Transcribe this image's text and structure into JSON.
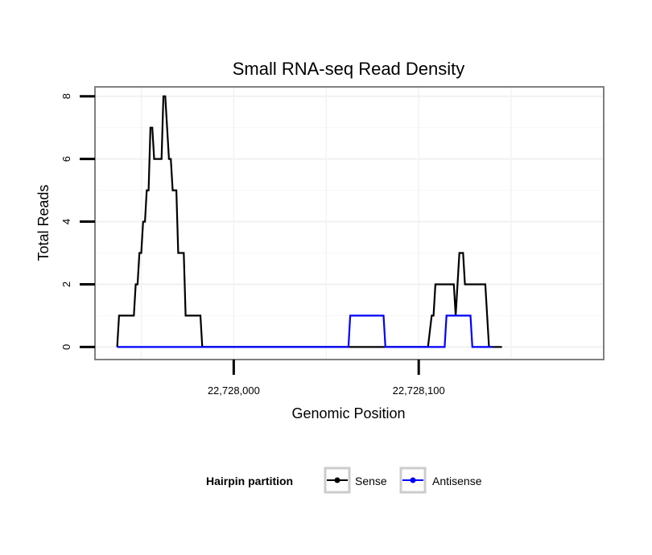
{
  "chart_data": {
    "type": "line",
    "title": "Small RNA-seq Read Density",
    "xlabel": "Genomic Position",
    "ylabel": "Total Reads",
    "xlim": [
      22727925,
      22728200
    ],
    "ylim": [
      -0.4,
      8.3
    ],
    "xticks": [
      22728000,
      22728100
    ],
    "xtick_labels": [
      "22,728,000",
      "22,728,100"
    ],
    "yticks": [
      0,
      2,
      4,
      6,
      8
    ],
    "ytick_labels": [
      "0",
      "2",
      "4",
      "6",
      "8"
    ],
    "grid": true,
    "legend": {
      "title": "Hairpin partition",
      "position": "bottom"
    },
    "series": [
      {
        "name": "Sense",
        "color": "#000000",
        "x": [
          22727937,
          22727938,
          22727946,
          22727947,
          22727948,
          22727949,
          22727950,
          22727951,
          22727952,
          22727953,
          22727954,
          22727955,
          22727956,
          22727957,
          22727958,
          22727959,
          22727960,
          22727961,
          22727962,
          22727963,
          22727964,
          22727965,
          22727966,
          22727967,
          22727968,
          22727969,
          22727970,
          22727971,
          22727972,
          22727973,
          22727974,
          22727975,
          22727976,
          22727982,
          22727983,
          22727988,
          22727989,
          22728104,
          22728105,
          22728107,
          22728108,
          22728109,
          22728110,
          22728113,
          22728116,
          22728119,
          22728120,
          22728121,
          22728122,
          22728123,
          22728124,
          22728125,
          22728126,
          22728127,
          22728130,
          22728133,
          22728136,
          22728137,
          22728138,
          22728139,
          22728140,
          22728145
        ],
        "y": [
          0,
          1,
          1,
          2,
          2,
          3,
          3,
          4,
          4,
          5,
          5,
          7,
          7,
          6,
          6,
          6,
          6,
          6,
          8,
          8,
          7,
          6,
          6,
          5,
          5,
          5,
          3,
          3,
          3,
          3,
          1,
          1,
          1,
          1,
          0,
          0,
          0,
          0,
          0,
          1,
          1,
          2,
          2,
          2,
          2,
          2,
          1,
          2,
          3,
          3,
          3,
          2,
          2,
          2,
          2,
          2,
          2,
          1,
          0,
          0,
          0,
          0
        ]
      },
      {
        "name": "Antisense",
        "color": "#0000ff",
        "x": [
          22727937,
          22727989,
          22728062,
          22728063,
          22728070,
          22728072,
          22728081,
          22728082,
          22728110,
          22728114,
          22728115,
          22728120,
          22728128,
          22728129,
          22728136,
          22728140
        ],
        "y": [
          0,
          0,
          0,
          1,
          1,
          1,
          1,
          0,
          0,
          0,
          1,
          1,
          1,
          0,
          0,
          0
        ]
      }
    ]
  }
}
